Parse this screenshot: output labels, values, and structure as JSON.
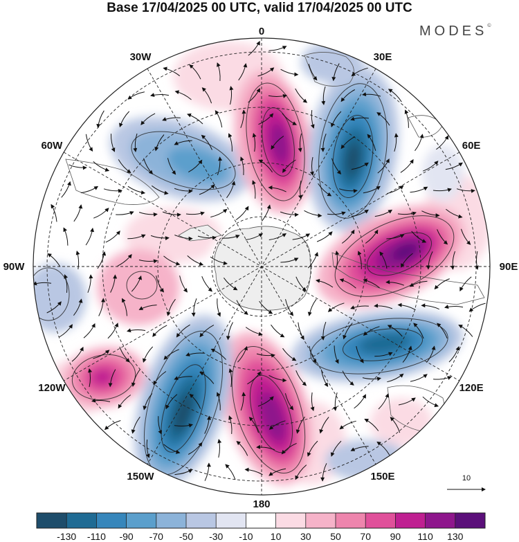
{
  "title": "Base 17/04/2025 00 UTC, valid 17/04/2025 00 UTC",
  "brand": {
    "name": "MODES",
    "mark": "©"
  },
  "longitude_labels": [
    "0",
    "30E",
    "60E",
    "90E",
    "120E",
    "150E",
    "180",
    "150W",
    "120W",
    "90W",
    "60W",
    "30W"
  ],
  "vector_scale": {
    "label": "10"
  },
  "colorbar": {
    "colors": [
      "#1e4d6b",
      "#1f6b94",
      "#3686bb",
      "#5b9fcc",
      "#8cb3d9",
      "#b9c7e3",
      "#e2e5f2",
      "#ffffff",
      "#fbdbe4",
      "#f6b3c9",
      "#ee85ad",
      "#e0509a",
      "#bf1f91",
      "#8e168c",
      "#5b0f7a"
    ],
    "tick_labels": [
      "-130",
      "-110",
      "-90",
      "-70",
      "-50",
      "-30",
      "-10",
      "10",
      "30",
      "50",
      "70",
      "90",
      "110",
      "130"
    ]
  }
}
